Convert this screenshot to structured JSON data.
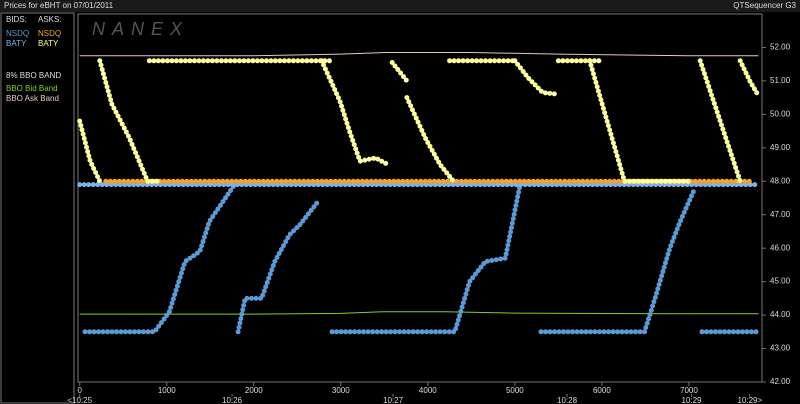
{
  "header": {
    "title": "Prices for eBHT on 07/01/2011",
    "app": "QTSequencer G3",
    "watermark": "NANEX"
  },
  "chart_data": {
    "type": "scatter",
    "legend_headers": [
      "BIDS:",
      "ASKS:"
    ],
    "band_title": "8% BBO BAND",
    "xlim": [
      -20,
      7840
    ],
    "ylim": [
      42,
      53
    ],
    "xticks": [
      0,
      1000,
      2000,
      3000,
      4000,
      5000,
      6000,
      7000
    ],
    "time_ticks": [
      {
        "value": 0,
        "label": "<10:25"
      },
      {
        "value": 1750,
        "label": "10:26"
      },
      {
        "value": 3600,
        "label": "10:27"
      },
      {
        "value": 5600,
        "label": "10:28"
      },
      {
        "value": 7030,
        "label": "10:29"
      },
      {
        "value": 7700,
        "label": "10:29>"
      }
    ],
    "yticks": [
      {
        "value": 42,
        "label": "42.00"
      },
      {
        "value": 43,
        "label": "43.00"
      },
      {
        "value": 44,
        "label": "44.00"
      },
      {
        "value": 45,
        "label": "45.00"
      },
      {
        "value": 46,
        "label": "46.00"
      },
      {
        "value": 47,
        "label": "47.00"
      },
      {
        "value": 48,
        "label": "48.00"
      },
      {
        "value": 49,
        "label": "49.00"
      },
      {
        "value": 50,
        "label": "50.00"
      },
      {
        "value": 51,
        "label": "51.00"
      },
      {
        "value": 52,
        "label": "52.00"
      }
    ],
    "series": [
      {
        "name": "NSDQ",
        "side": "bid",
        "color": "#5b9bd5",
        "x": [
          60,
          460,
          860,
          1030,
          1210,
          1380,
          1490,
          1780,
          null,
          1820,
          1900,
          2090,
          2240,
          2410,
          2530,
          2740,
          null,
          2900,
          3600,
          4310,
          4480,
          4660,
          4890,
          5060,
          null,
          5300,
          6000,
          6490,
          6610,
          6780,
          6900,
          7070,
          null,
          7150,
          7800
        ],
        "values": [
          43.5,
          43.5,
          43.5,
          44.1,
          45.6,
          45.9,
          46.8,
          47.9,
          null,
          43.5,
          44.5,
          44.5,
          45.6,
          46.4,
          46.7,
          47.4,
          null,
          43.5,
          43.5,
          43.5,
          45.0,
          45.6,
          45.7,
          47.9,
          null,
          43.5,
          43.5,
          43.5,
          44.5,
          46.0,
          46.8,
          47.8,
          null,
          43.5,
          43.5
        ]
      },
      {
        "name": "BATY",
        "side": "bid",
        "color": "#7fb2e5",
        "x": [
          0,
          7800
        ],
        "values": [
          47.9,
          47.9
        ]
      },
      {
        "name": "NSDQ",
        "side": "ask",
        "color": "#f5a030",
        "x": [
          300,
          7700
        ],
        "values": [
          48.0,
          48.0
        ]
      },
      {
        "name": "BATY",
        "side": "ask",
        "color": "#ffffa0",
        "x": [
          0,
          120,
          230,
          null,
          230,
          370,
          570,
          780,
          900,
          null,
          800,
          2870,
          null,
          2780,
          2990,
          3100,
          3220,
          3400,
          3540,
          null,
          3590,
          3760,
          null,
          3760,
          3970,
          4140,
          4310,
          null,
          4250,
          5000,
          null,
          5000,
          5150,
          5320,
          5500,
          null,
          5500,
          5980,
          null,
          5860,
          6060,
          6260,
          7000,
          null,
          7130,
          7360,
          7590,
          null,
          7590,
          7700,
          7790
        ],
        "values": [
          49.8,
          48.6,
          48.0,
          null,
          51.6,
          50.3,
          49.3,
          48.0,
          48.0,
          null,
          51.6,
          51.6,
          null,
          51.6,
          50.4,
          49.5,
          48.6,
          48.7,
          48.5,
          null,
          51.55,
          51.0,
          null,
          50.5,
          49.3,
          48.5,
          47.95,
          null,
          51.6,
          51.6,
          null,
          51.6,
          51.1,
          50.65,
          50.6,
          null,
          51.6,
          51.6,
          null,
          51.6,
          49.8,
          48.0,
          48.0,
          null,
          51.6,
          49.8,
          48.0,
          null,
          51.6,
          51.0,
          50.6
        ]
      }
    ],
    "bands": [
      {
        "name": "BBO Bid Band",
        "color": "#7ed321",
        "x": [
          0,
          2000,
          3000,
          3500,
          4200,
          5000,
          7000,
          7800
        ],
        "values": [
          44.03,
          44.03,
          44.05,
          44.1,
          44.1,
          44.06,
          44.04,
          44.04
        ]
      },
      {
        "name": "BBO Ask Band",
        "color": "#e8c8c0",
        "x": [
          0,
          2000,
          3000,
          3500,
          4500,
          5500,
          7000,
          7800
        ],
        "values": [
          51.75,
          51.75,
          51.8,
          51.85,
          51.85,
          51.8,
          51.75,
          51.75
        ]
      }
    ]
  }
}
